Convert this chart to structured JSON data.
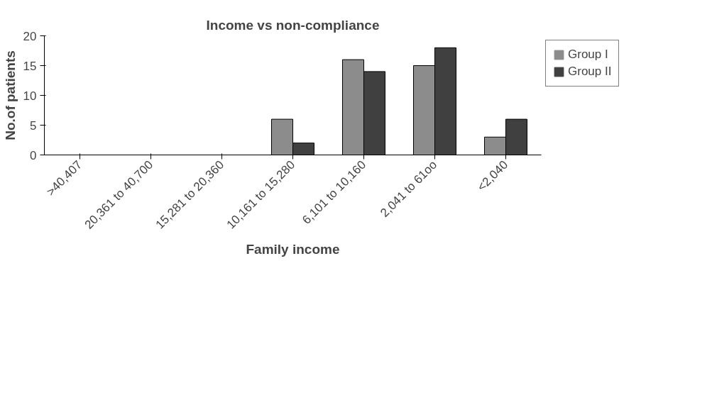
{
  "chart_data": {
    "type": "bar",
    "title": "Income vs non-compliance",
    "xlabel": "Family income",
    "ylabel": "No.of patients",
    "categories": [
      ">40,407",
      "20,361 to 40,700",
      "15,281 to 20,360",
      "10,161 to 15,280",
      "6,101 to 10,160",
      "2,041 to 61oo",
      "<2,040"
    ],
    "series": [
      {
        "name": "Group I",
        "color": "#8c8c8c",
        "values": [
          0,
          0,
          0,
          6,
          16,
          15,
          3
        ]
      },
      {
        "name": "Group II",
        "color": "#404040",
        "values": [
          0,
          0,
          0,
          2,
          14,
          18,
          6
        ]
      }
    ],
    "ylim": [
      0,
      20
    ],
    "yticks": [
      0,
      5,
      10,
      15,
      20
    ],
    "grid": false,
    "legend": "right"
  }
}
